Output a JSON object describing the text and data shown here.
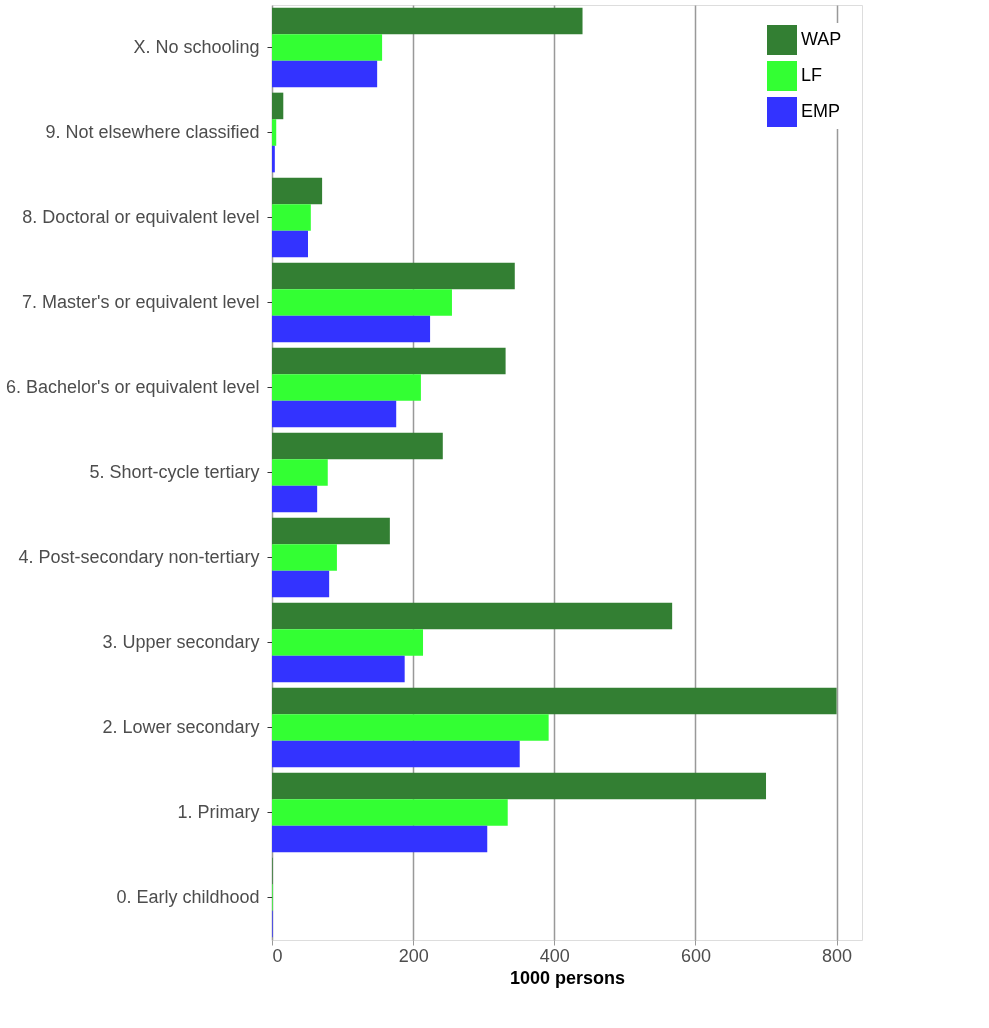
{
  "chart_data": {
    "type": "bar",
    "orientation": "horizontal",
    "xlabel": "1000 persons",
    "categories": [
      "X. No schooling",
      "9. Not elsewhere classified",
      "8. Doctoral or equivalent level",
      "7. Master's or equivalent level",
      "6. Bachelor's or equivalent level",
      "5. Short-cycle tertiary",
      "4. Post-secondary non-tertiary",
      "3. Upper secondary",
      "2. Lower secondary",
      "1. Primary",
      "0. Early childhood"
    ],
    "series": [
      {
        "name": "WAP",
        "color": "#337f33",
        "values": [
          440,
          16,
          71,
          344,
          331,
          242,
          167,
          567,
          800,
          700,
          1
        ]
      },
      {
        "name": "LF",
        "color": "#33ff33",
        "values": [
          156,
          6,
          55,
          255,
          211,
          79,
          92,
          214,
          392,
          334,
          1
        ]
      },
      {
        "name": "EMP",
        "color": "#3333ff",
        "values": [
          149,
          4,
          51,
          224,
          176,
          64,
          81,
          188,
          351,
          305,
          1
        ]
      }
    ],
    "xlim": [
      0,
      836
    ],
    "xticks": [
      0,
      200,
      400,
      600,
      800
    ],
    "grid": "x",
    "legend": "top right"
  }
}
